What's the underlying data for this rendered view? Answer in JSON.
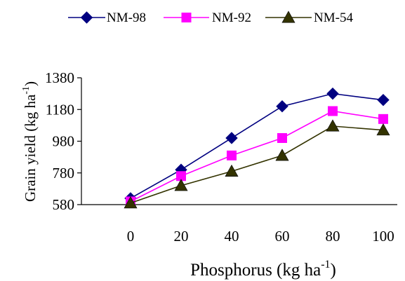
{
  "chart_data": {
    "type": "line",
    "x": [
      0,
      20,
      40,
      60,
      80,
      100
    ],
    "xlabel": "Phosphorus (kg ha",
    "xlabel_sup": "-1",
    "xlabel_close": ")",
    "ylabel": "Grain yield (kg ha",
    "ylabel_sup": "-1",
    "ylabel_close": ")",
    "ylim": [
      580,
      1380
    ],
    "yticks": [
      580,
      780,
      980,
      1180,
      1380
    ],
    "grid": false,
    "legend_position": "top",
    "series": [
      {
        "name": "NM-98",
        "color": "#000080",
        "marker": "diamond",
        "values": [
          620,
          800,
          1000,
          1200,
          1280,
          1240
        ]
      },
      {
        "name": "NM-92",
        "color": "#ff00ff",
        "marker": "square",
        "values": [
          600,
          760,
          890,
          1000,
          1170,
          1120
        ]
      },
      {
        "name": "NM-54",
        "color": "#333300",
        "marker": "triangle",
        "values": [
          590,
          700,
          790,
          890,
          1075,
          1050
        ]
      }
    ]
  }
}
